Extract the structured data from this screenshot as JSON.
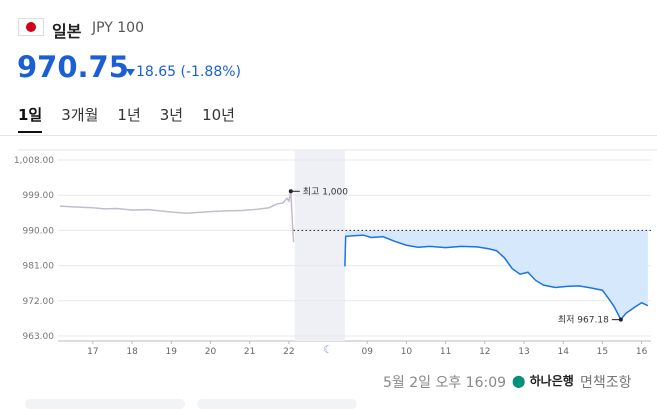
{
  "header": {
    "name": "일본",
    "code": "JPY 100",
    "price": "970.75",
    "change": "18.65",
    "change_pct": "(-1.88%)"
  },
  "tabs": [
    "1일",
    "3개월",
    "1년",
    "3년",
    "10년"
  ],
  "chart_data": {
    "type": "line",
    "ylim": [
      963,
      1008
    ],
    "yticks": [
      {
        "value": 963,
        "label": "963.00"
      },
      {
        "value": 972,
        "label": "972.00"
      },
      {
        "value": 981,
        "label": "981.00"
      },
      {
        "value": 990,
        "label": "990.00"
      },
      {
        "value": 999,
        "label": "999.00"
      },
      {
        "value": 1008,
        "label": "1,008.00"
      }
    ],
    "xlim": [
      -0.89,
      14.24
    ],
    "xticks": [
      {
        "value": 0,
        "label": "17"
      },
      {
        "value": 1,
        "label": "18"
      },
      {
        "value": 2,
        "label": "19"
      },
      {
        "value": 3,
        "label": "20"
      },
      {
        "value": 4,
        "label": "21"
      },
      {
        "value": 5,
        "label": "22"
      },
      {
        "value": 7,
        "label": "09"
      },
      {
        "value": 8,
        "label": "10"
      },
      {
        "value": 9,
        "label": "11"
      },
      {
        "value": 10,
        "label": "12"
      },
      {
        "value": 11,
        "label": "13"
      },
      {
        "value": 12,
        "label": "14"
      },
      {
        "value": 13,
        "label": "15"
      },
      {
        "value": 14,
        "label": "16"
      }
    ],
    "grid": true,
    "reference_line": 990,
    "shaded_range": [
      5.15,
      6.43
    ],
    "series": [
      {
        "color": "#c4bccd",
        "fill": false,
        "x": [
          -0.84,
          -0.5,
          0,
          0.3,
          0.6,
          1,
          1.4,
          1.8,
          2.1,
          2.4,
          2.7,
          3,
          3.4,
          3.8,
          4.2,
          4.5,
          4.7,
          4.85,
          4.95,
          5.0,
          5.05,
          5.08,
          5.12
        ],
        "values": [
          996.2,
          996,
          995.8,
          995.5,
          995.6,
          995.2,
          995.3,
          994.9,
          994.6,
          994.4,
          994.6,
          994.8,
          995,
          995.1,
          995.4,
          995.8,
          996.8,
          997,
          998.2,
          997.5,
          1000,
          994,
          987
        ]
      },
      {
        "color": "#1a73e8",
        "fill": true,
        "x": [
          6.43,
          6.45,
          6.9,
          7.1,
          7.4,
          7.7,
          8.0,
          8.3,
          8.6,
          9.0,
          9.4,
          9.8,
          10.1,
          10.3,
          10.5,
          10.7,
          10.9,
          11.1,
          11.3,
          11.5,
          11.8,
          12.1,
          12.4,
          12.7,
          13.0,
          13.2,
          13.3,
          13.47,
          13.6,
          13.8,
          14.0,
          14.16
        ],
        "values": [
          980.8,
          988.5,
          988.8,
          988.2,
          988.4,
          987.2,
          986.2,
          985.7,
          985.9,
          985.6,
          985.9,
          985.8,
          985.3,
          984.8,
          983,
          980.2,
          978.8,
          979.3,
          977.2,
          976,
          975.4,
          975.7,
          975.8,
          975.3,
          974.7,
          972,
          970.5,
          967.18,
          968.8,
          970.2,
          971.5,
          970.75
        ]
      }
    ],
    "annotations": [
      {
        "label": "최고 1,000",
        "x": 5.05,
        "y": 1000,
        "side": "right"
      },
      {
        "label": "최저 967.18",
        "x": 13.47,
        "y": 967.18,
        "side": "left"
      }
    ]
  },
  "footer": {
    "timestamp": "5월 2일 오후 16:09",
    "bank": "하나은행",
    "disclaimer": "면책조항"
  }
}
